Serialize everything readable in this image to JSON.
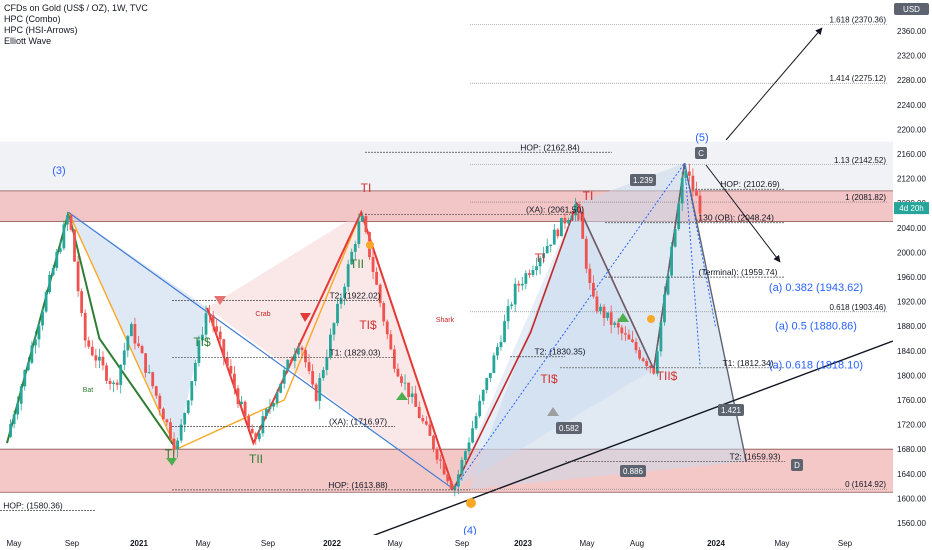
{
  "header": {
    "symbol_line": "CFDs on Gold (US$ / OZ), 1W, TVC",
    "indicators": [
      "HPC (Combo)",
      "HPC (HSI-Arrows)",
      "Elliott Wave"
    ]
  },
  "price_axis": {
    "currency": "USD",
    "ticks": [
      2360,
      2320,
      2280,
      2240,
      2200,
      2160,
      2120,
      2080,
      2040,
      2000,
      1960,
      1920,
      1880,
      1840,
      1800,
      1760,
      1720,
      1680,
      1640,
      1600,
      1560
    ],
    "current_price_badge": "4d 20h",
    "last_price": 2072
  },
  "time_axis": {
    "labels": [
      "May",
      "Sep",
      "2021",
      "May",
      "Sep",
      "2022",
      "May",
      "Sep",
      "2023",
      "May",
      "Aug",
      "2024",
      "May",
      "Sep"
    ]
  },
  "colors": {
    "up": "#26a69a",
    "down": "#ef5350",
    "zone": "#f2b6b6",
    "harmonic_fill": "#c9d8ea",
    "wave_label": "#2962ff",
    "bull_pattern": "#2e7d32",
    "bear_pattern": "#e53935",
    "orange_pattern": "#f9a825",
    "trendline": "#131722"
  },
  "chart_data": {
    "type": "candlestick",
    "symbol": "CFDs on Gold (US$ / OZ)",
    "timeframe": "1W",
    "ylim": [
      1540,
      2390
    ],
    "price_path": [
      [
        "2020-04",
        1700
      ],
      [
        "2020-08",
        2065
      ],
      [
        "2020-09",
        1860
      ],
      [
        "2020-11",
        1780
      ],
      [
        "2020-12",
        1880
      ],
      [
        "2021-03",
        1680
      ],
      [
        "2021-05",
        1910
      ],
      [
        "2021-08",
        1690
      ],
      [
        "2021-11",
        1860
      ],
      [
        "2021-12",
        1760
      ],
      [
        "2022-03",
        2060
      ],
      [
        "2022-05",
        1830
      ],
      [
        "2022-09",
        1615
      ],
      [
        "2023-01",
        1940
      ],
      [
        "2023-05",
        2080
      ],
      [
        "2023-06",
        1920
      ],
      [
        "2023-10",
        1810
      ],
      [
        "2023-12",
        2140
      ],
      [
        "2024-01",
        2072
      ]
    ],
    "zones": [
      {
        "from": 2050,
        "to": 2100
      },
      {
        "from": 1610,
        "to": 1680
      }
    ],
    "right_levels": [
      {
        "label": "1.618 (2370.36)",
        "value": 2370.36
      },
      {
        "label": "1.414 (2275.12)",
        "value": 2275.12
      },
      {
        "label": "1.13 (2142.52)",
        "value": 2142.52
      },
      {
        "label": "1 (2081.82)",
        "value": 2081.82
      },
      {
        "label": "0.618 (1903.46)",
        "value": 1903.46
      },
      {
        "label": "0 (1614.92)",
        "value": 1614.92
      }
    ],
    "level_labels": [
      {
        "label": "HOP: (2162.84)",
        "value": 2162.84
      },
      {
        "label": "HOP: (2102.69)",
        "value": 2102.69
      },
      {
        "label": "(XA): (2061.50)",
        "value": 2061.5
      },
      {
        "label": ".130 (OB): (2048.24)",
        "value": 2048.24
      },
      {
        "label": "(Terminal): (1959.74)",
        "value": 1959.74
      },
      {
        "label": "T2: (1922.02)",
        "value": 1922.02
      },
      {
        "label": "T1: (1829.03)",
        "value": 1829.03
      },
      {
        "label": "T2: (1830.35)",
        "value": 1830.35
      },
      {
        "label": "T1: (1812.34)",
        "value": 1812.34
      },
      {
        "label": "(XA): (1716.97)",
        "value": 1716.97
      },
      {
        "label": "T2: (1659.93)",
        "value": 1659.93
      },
      {
        "label": "HOP: (1613.88)",
        "value": 1613.88
      },
      {
        "label": "HOP: (1580.36)",
        "value": 1580.36
      }
    ],
    "targets": [
      {
        "label": "(a) 0.382 (1943.62)",
        "value": 1943.62
      },
      {
        "label": "(a) 0.5 (1880.86)",
        "value": 1880.86
      },
      {
        "label": "(a) 0.618 (1818.10)",
        "value": 1818.1
      }
    ],
    "wave_labels": [
      "(3)",
      "(4)",
      "(5)"
    ],
    "pattern_names": [
      "Bat",
      "Crab",
      "Shark"
    ],
    "signal_labels": [
      "TI",
      "TII",
      "TI$",
      "TII$"
    ],
    "ratio_boxes": [
      "1.239",
      "0.582",
      "0.886",
      "1.421"
    ],
    "abcd_points": [
      "C",
      "D"
    ]
  }
}
